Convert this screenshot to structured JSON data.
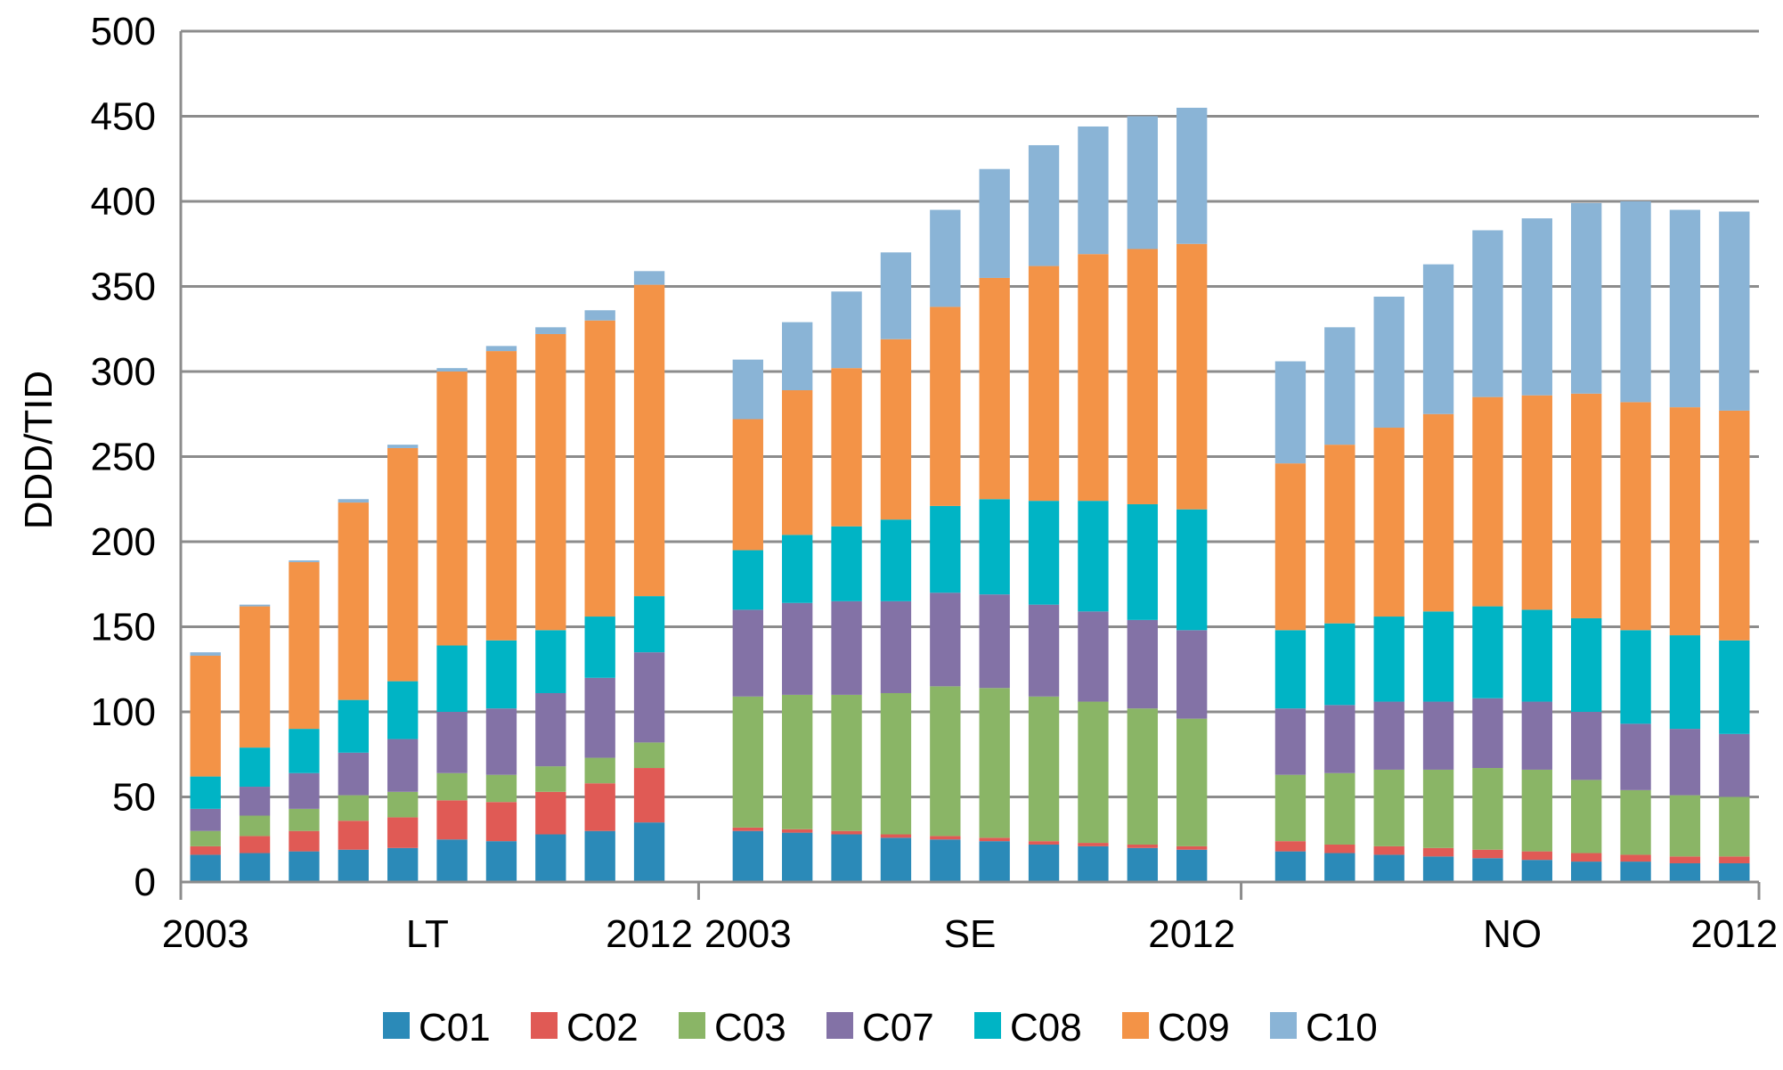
{
  "chart_data": {
    "type": "bar",
    "stacked": true,
    "ylabel": "DDD/TID",
    "ylim": [
      0,
      500
    ],
    "yticks": [
      0,
      50,
      100,
      150,
      200,
      250,
      300,
      350,
      400,
      450,
      500
    ],
    "grid": true,
    "legend_position": "bottom",
    "groups": [
      {
        "label": "LT",
        "start_label": "2003",
        "end_label": "2012"
      },
      {
        "label": "SE",
        "start_label": "2003",
        "end_label": "2012"
      },
      {
        "label": "NO",
        "start_label": "",
        "end_label": "2012"
      }
    ],
    "categories": [
      "LT 2003",
      "LT 2004",
      "LT 2005",
      "LT 2006",
      "LT 2007",
      "LT 2008",
      "LT 2009",
      "LT 2010",
      "LT 2011",
      "LT 2012",
      "SE 2003",
      "SE 2004",
      "SE 2005",
      "SE 2006",
      "SE 2007",
      "SE 2008",
      "SE 2009",
      "SE 2010",
      "SE 2011",
      "SE 2012",
      "NO 2003",
      "NO 2004",
      "NO 2005",
      "NO 2006",
      "NO 2007",
      "NO 2008",
      "NO 2009",
      "NO 2010",
      "NO 2011",
      "NO 2012"
    ],
    "series": [
      {
        "name": "C01",
        "color": "#2b8ab8",
        "values": [
          16,
          17,
          18,
          19,
          20,
          25,
          24,
          28,
          30,
          35,
          30,
          29,
          28,
          26,
          25,
          24,
          22,
          21,
          20,
          19,
          18,
          17,
          16,
          15,
          14,
          13,
          12,
          12,
          11,
          11
        ]
      },
      {
        "name": "C02",
        "color": "#e05a55",
        "values": [
          5,
          10,
          12,
          17,
          18,
          23,
          23,
          25,
          28,
          32,
          2,
          2,
          2,
          2,
          2,
          2,
          2,
          2,
          2,
          2,
          6,
          5,
          5,
          5,
          5,
          5,
          5,
          4,
          4,
          4
        ]
      },
      {
        "name": "C03",
        "color": "#8ab566",
        "values": [
          9,
          12,
          13,
          15,
          15,
          16,
          16,
          15,
          15,
          15,
          77,
          79,
          80,
          83,
          88,
          88,
          85,
          83,
          80,
          75,
          39,
          42,
          45,
          46,
          48,
          48,
          43,
          38,
          36,
          35
        ]
      },
      {
        "name": "C07",
        "color": "#8372a6",
        "values": [
          13,
          17,
          21,
          25,
          31,
          36,
          39,
          43,
          47,
          53,
          51,
          54,
          55,
          54,
          55,
          55,
          54,
          53,
          52,
          52,
          39,
          40,
          40,
          40,
          41,
          40,
          40,
          39,
          39,
          37
        ]
      },
      {
        "name": "C08",
        "color": "#00b4c5",
        "values": [
          19,
          23,
          26,
          31,
          34,
          39,
          40,
          37,
          36,
          33,
          35,
          40,
          44,
          48,
          51,
          56,
          61,
          65,
          68,
          71,
          46,
          48,
          50,
          53,
          54,
          54,
          55,
          55,
          55,
          55
        ]
      },
      {
        "name": "C09",
        "color": "#f39347",
        "values": [
          71,
          83,
          98,
          116,
          137,
          161,
          170,
          174,
          174,
          183,
          77,
          85,
          93,
          106,
          117,
          130,
          138,
          145,
          150,
          156,
          98,
          105,
          111,
          116,
          123,
          126,
          132,
          134,
          134,
          135
        ]
      },
      {
        "name": "C10",
        "color": "#8ab4d6",
        "values": [
          2,
          1,
          1,
          2,
          2,
          2,
          3,
          4,
          6,
          8,
          35,
          40,
          45,
          51,
          57,
          64,
          71,
          75,
          78,
          80,
          60,
          69,
          77,
          88,
          98,
          104,
          112,
          118,
          116,
          117
        ]
      }
    ]
  }
}
